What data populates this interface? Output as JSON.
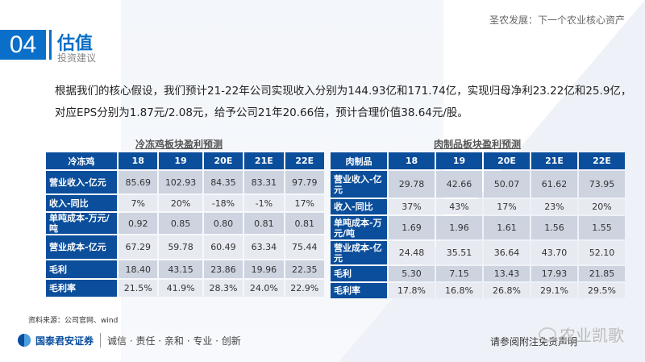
{
  "header": {
    "top_title": "圣农发展：下一个农业核心资产",
    "section_number": "04",
    "section_title": "估值",
    "section_subtitle": "投资建议"
  },
  "body": {
    "paragraph": "根据我们的核心假设，我们预计21-22年公司实现收入分别为144.93亿和171.74亿，实现归母净利23.22亿和25.9亿，对应EPS分别为1.87元/2.08元，给予公司21年20.66倍，预计合理价值38.64元/股。"
  },
  "tables": [
    {
      "title": "冷冻鸡板块盈利预测",
      "columns": [
        "冷冻鸡",
        "18",
        "19",
        "20E",
        "21E",
        "22E"
      ],
      "rows": [
        [
          "营业收入-亿元",
          "85.69",
          "102.93",
          "84.35",
          "83.31",
          "97.79"
        ],
        [
          "收入-同比",
          "7%",
          "20%",
          "-18%",
          "-1%",
          "17%"
        ],
        [
          "单吨成本-万元/吨",
          "0.92",
          "0.85",
          "0.80",
          "0.81",
          "0.81"
        ],
        [
          "营业成本-亿元",
          "67.29",
          "59.78",
          "60.49",
          "63.34",
          "75.44"
        ],
        [
          "毛利",
          "18.40",
          "43.15",
          "23.86",
          "19.96",
          "22.35"
        ],
        [
          "毛利率",
          "21.5%",
          "41.9%",
          "28.3%",
          "24.0%",
          "22.9%"
        ]
      ]
    },
    {
      "title": "肉制品板块盈利预测",
      "columns": [
        "肉制品",
        "18",
        "19",
        "20E",
        "21E",
        "22E"
      ],
      "rows": [
        [
          "营业收入-亿元",
          "29.78",
          "42.66",
          "50.07",
          "61.62",
          "73.95"
        ],
        [
          "收入-同比",
          "37%",
          "43%",
          "17%",
          "23%",
          "20%"
        ],
        [
          "单吨成本-万元/吨",
          "1.69",
          "1.96",
          "1.61",
          "1.56",
          "1.55"
        ],
        [
          "营业成本-亿元",
          "24.48",
          "35.51",
          "36.64",
          "43.70",
          "52.10"
        ],
        [
          "毛利",
          "5.30",
          "7.15",
          "13.43",
          "17.93",
          "21.85"
        ],
        [
          "毛利率",
          "17.8%",
          "16.8%",
          "26.8%",
          "29.1%",
          "29.5%"
        ]
      ]
    }
  ],
  "footer": {
    "source": "资料来源：公司官网、wind",
    "company": "国泰君安证券",
    "slogan": "诚信 · 责任 · 亲和 · 专业 · 创新",
    "disclaimer": "请参阅附注免责声明",
    "watermark": "农业凯歌"
  },
  "colors": {
    "accent": "#0a6fc8",
    "table_header": "#0b4e9b",
    "row_dark": "#cdd4e0",
    "row_light": "#e7eaf0"
  }
}
